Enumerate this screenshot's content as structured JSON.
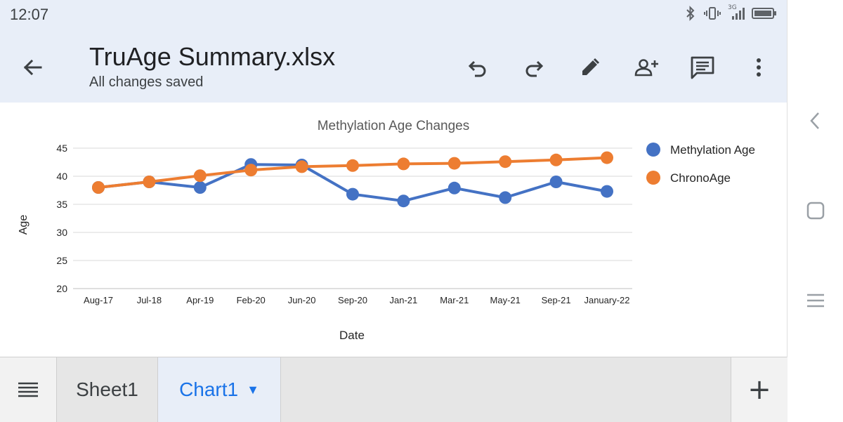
{
  "status_bar": {
    "time": "12:07",
    "network_label": "3G",
    "icons": [
      "bluetooth-icon",
      "vibrate-icon",
      "signal-icon",
      "battery-icon"
    ]
  },
  "app_bar": {
    "title": "TruAge Summary.xlsx",
    "subtitle": "All changes saved",
    "actions": [
      "undo-icon",
      "redo-icon",
      "edit-icon",
      "add-person-icon",
      "comment-icon",
      "more-vert-icon"
    ]
  },
  "sheet_tabs": {
    "items": [
      {
        "label": "Sheet1",
        "selected": false
      },
      {
        "label": "Chart1",
        "selected": true
      }
    ],
    "add_label": "+"
  },
  "colors": {
    "accent": "#1a73e8",
    "methylation": "#4472c4",
    "chrono": "#ed7d31"
  },
  "chart_data": {
    "type": "line",
    "title": "Methylation Age Changes",
    "xlabel": "Date",
    "ylabel": "Age",
    "categories": [
      "Aug-17",
      "Jul-18",
      "Apr-19",
      "Feb-20",
      "Jun-20",
      "Sep-20",
      "Jan-21",
      "Mar-21",
      "May-21",
      "Sep-21",
      "January-22"
    ],
    "ylim": [
      20,
      45
    ],
    "yticks": [
      20,
      25,
      30,
      35,
      40,
      45
    ],
    "grid": true,
    "legend_position": "right",
    "series": [
      {
        "name": "Methylation Age",
        "color": "#4472c4",
        "values": [
          38.0,
          39.0,
          38.0,
          42.1,
          42.0,
          36.8,
          35.6,
          37.9,
          36.2,
          39.0,
          37.3
        ]
      },
      {
        "name": "ChronoAge",
        "color": "#ed7d31",
        "values": [
          38.0,
          39.0,
          40.1,
          41.1,
          41.7,
          41.9,
          42.2,
          42.3,
          42.6,
          42.9,
          43.3
        ]
      }
    ]
  }
}
